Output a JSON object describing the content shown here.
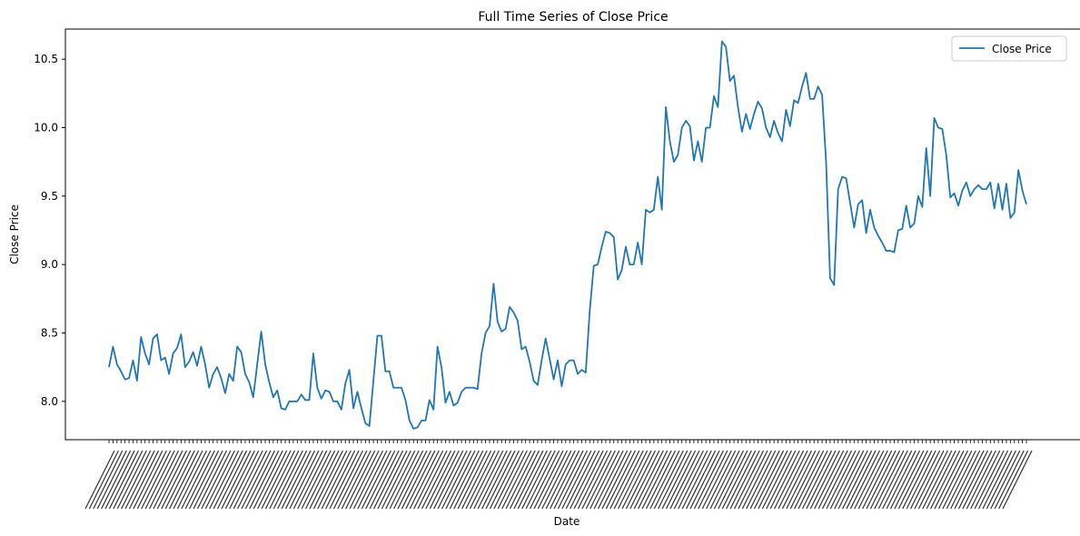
{
  "chart_data": {
    "type": "line",
    "title": "Full Time Series of Close Price",
    "xlabel": "Date",
    "ylabel": "Close Price",
    "ylim": [
      7.72,
      10.72
    ],
    "yticks": [
      8.0,
      8.5,
      9.0,
      9.5,
      10.0,
      10.5
    ],
    "ytick_labels": [
      "8.0",
      "8.5",
      "9.0",
      "9.5",
      "10.0",
      "10.5"
    ],
    "x_tick_labels_note": "dense overlapping date labels, unreadable",
    "grid": false,
    "legend": "top-right",
    "series": [
      {
        "name": "Close Price",
        "color": "#1f77b4",
        "values": [
          8.25,
          8.4,
          8.27,
          8.22,
          8.16,
          8.17,
          8.3,
          8.15,
          8.47,
          8.35,
          8.27,
          8.46,
          8.49,
          8.3,
          8.32,
          8.2,
          8.35,
          8.39,
          8.49,
          8.25,
          8.29,
          8.36,
          8.26,
          8.4,
          8.27,
          8.1,
          8.2,
          8.25,
          8.17,
          8.06,
          8.2,
          8.15,
          8.4,
          8.36,
          8.2,
          8.14,
          8.03,
          8.27,
          8.51,
          8.27,
          8.14,
          8.03,
          8.08,
          7.95,
          7.94,
          8.0,
          8.0,
          8.0,
          8.05,
          8.01,
          8.01,
          8.35,
          8.1,
          8.02,
          8.08,
          8.07,
          8.0,
          8.0,
          7.94,
          8.13,
          8.23,
          7.95,
          8.07,
          7.95,
          7.84,
          7.82,
          8.15,
          8.48,
          8.48,
          8.22,
          8.22,
          8.1,
          8.1,
          8.1,
          8.01,
          7.86,
          7.8,
          7.81,
          7.86,
          7.86,
          8.01,
          7.94,
          8.4,
          8.25,
          7.99,
          8.07,
          7.97,
          7.99,
          8.07,
          8.1,
          8.1,
          8.1,
          8.09,
          8.35,
          8.5,
          8.55,
          8.86,
          8.58,
          8.51,
          8.53,
          8.69,
          8.65,
          8.59,
          8.38,
          8.4,
          8.29,
          8.15,
          8.12,
          8.3,
          8.46,
          8.31,
          8.16,
          8.3,
          8.11,
          8.27,
          8.3,
          8.3,
          8.2,
          8.23,
          8.21,
          8.66,
          8.99,
          9.0,
          9.13,
          9.24,
          9.23,
          9.2,
          8.89,
          8.96,
          9.13,
          9.0,
          9.0,
          9.16,
          9.0,
          9.4,
          9.38,
          9.4,
          9.64,
          9.4,
          10.15,
          9.9,
          9.75,
          9.8,
          10.0,
          10.05,
          10.01,
          9.76,
          9.9,
          9.75,
          10.0,
          10.0,
          10.23,
          10.15,
          10.63,
          10.59,
          10.34,
          10.38,
          10.15,
          9.97,
          10.1,
          9.99,
          10.1,
          10.19,
          10.14,
          10.0,
          9.93,
          10.05,
          9.96,
          9.9,
          10.13,
          10.01,
          10.2,
          10.18,
          10.3,
          10.4,
          10.21,
          10.21,
          10.3,
          10.24,
          9.75,
          8.9,
          8.85,
          9.55,
          9.64,
          9.63,
          9.45,
          9.27,
          9.44,
          9.47,
          9.23,
          9.4,
          9.27,
          9.21,
          9.16,
          9.1,
          9.1,
          9.09,
          9.25,
          9.26,
          9.43,
          9.27,
          9.3,
          9.5,
          9.42,
          9.85,
          9.5,
          10.07,
          10.0,
          9.99,
          9.8,
          9.49,
          9.52,
          9.43,
          9.54,
          9.6,
          9.5,
          9.55,
          9.58,
          9.55,
          9.55,
          9.6,
          9.41,
          9.59,
          9.4,
          9.59,
          9.34,
          9.38,
          9.69,
          9.54,
          9.44
        ]
      }
    ]
  }
}
